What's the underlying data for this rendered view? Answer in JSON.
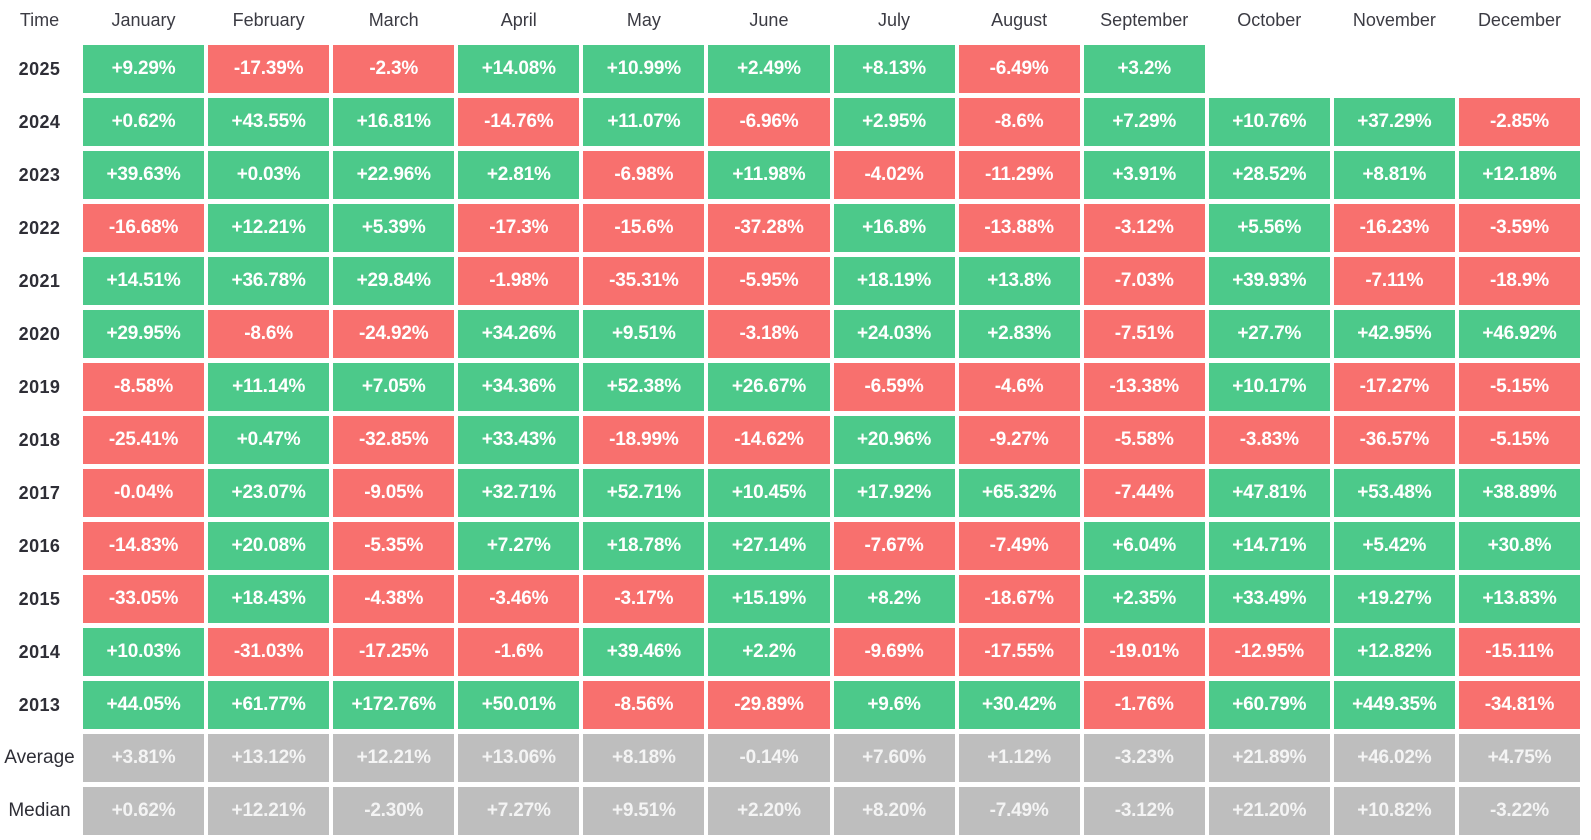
{
  "chart_data": {
    "type": "heatmap",
    "corner_label": "Time",
    "columns": [
      "January",
      "February",
      "March",
      "April",
      "May",
      "June",
      "July",
      "August",
      "September",
      "October",
      "November",
      "December"
    ],
    "rows": [
      {
        "label": "2025",
        "kind": "year",
        "values": [
          "+9.29%",
          "-17.39%",
          "-2.3%",
          "+14.08%",
          "+10.99%",
          "+2.49%",
          "+8.13%",
          "-6.49%",
          "+3.2%",
          null,
          null,
          null
        ]
      },
      {
        "label": "2024",
        "kind": "year",
        "values": [
          "+0.62%",
          "+43.55%",
          "+16.81%",
          "-14.76%",
          "+11.07%",
          "-6.96%",
          "+2.95%",
          "-8.6%",
          "+7.29%",
          "+10.76%",
          "+37.29%",
          "-2.85%"
        ]
      },
      {
        "label": "2023",
        "kind": "year",
        "values": [
          "+39.63%",
          "+0.03%",
          "+22.96%",
          "+2.81%",
          "-6.98%",
          "+11.98%",
          "-4.02%",
          "-11.29%",
          "+3.91%",
          "+28.52%",
          "+8.81%",
          "+12.18%"
        ]
      },
      {
        "label": "2022",
        "kind": "year",
        "values": [
          "-16.68%",
          "+12.21%",
          "+5.39%",
          "-17.3%",
          "-15.6%",
          "-37.28%",
          "+16.8%",
          "-13.88%",
          "-3.12%",
          "+5.56%",
          "-16.23%",
          "-3.59%"
        ]
      },
      {
        "label": "2021",
        "kind": "year",
        "values": [
          "+14.51%",
          "+36.78%",
          "+29.84%",
          "-1.98%",
          "-35.31%",
          "-5.95%",
          "+18.19%",
          "+13.8%",
          "-7.03%",
          "+39.93%",
          "-7.11%",
          "-18.9%"
        ]
      },
      {
        "label": "2020",
        "kind": "year",
        "values": [
          "+29.95%",
          "-8.6%",
          "-24.92%",
          "+34.26%",
          "+9.51%",
          "-3.18%",
          "+24.03%",
          "+2.83%",
          "-7.51%",
          "+27.7%",
          "+42.95%",
          "+46.92%"
        ]
      },
      {
        "label": "2019",
        "kind": "year",
        "values": [
          "-8.58%",
          "+11.14%",
          "+7.05%",
          "+34.36%",
          "+52.38%",
          "+26.67%",
          "-6.59%",
          "-4.6%",
          "-13.38%",
          "+10.17%",
          "-17.27%",
          "-5.15%"
        ]
      },
      {
        "label": "2018",
        "kind": "year",
        "values": [
          "-25.41%",
          "+0.47%",
          "-32.85%",
          "+33.43%",
          "-18.99%",
          "-14.62%",
          "+20.96%",
          "-9.27%",
          "-5.58%",
          "-3.83%",
          "-36.57%",
          "-5.15%"
        ]
      },
      {
        "label": "2017",
        "kind": "year",
        "values": [
          "-0.04%",
          "+23.07%",
          "-9.05%",
          "+32.71%",
          "+52.71%",
          "+10.45%",
          "+17.92%",
          "+65.32%",
          "-7.44%",
          "+47.81%",
          "+53.48%",
          "+38.89%"
        ]
      },
      {
        "label": "2016",
        "kind": "year",
        "values": [
          "-14.83%",
          "+20.08%",
          "-5.35%",
          "+7.27%",
          "+18.78%",
          "+27.14%",
          "-7.67%",
          "-7.49%",
          "+6.04%",
          "+14.71%",
          "+5.42%",
          "+30.8%"
        ]
      },
      {
        "label": "2015",
        "kind": "year",
        "values": [
          "-33.05%",
          "+18.43%",
          "-4.38%",
          "-3.46%",
          "-3.17%",
          "+15.19%",
          "+8.2%",
          "-18.67%",
          "+2.35%",
          "+33.49%",
          "+19.27%",
          "+13.83%"
        ]
      },
      {
        "label": "2014",
        "kind": "year",
        "values": [
          "+10.03%",
          "-31.03%",
          "-17.25%",
          "-1.6%",
          "+39.46%",
          "+2.2%",
          "-9.69%",
          "-17.55%",
          "-19.01%",
          "-12.95%",
          "+12.82%",
          "-15.11%"
        ]
      },
      {
        "label": "2013",
        "kind": "year",
        "values": [
          "+44.05%",
          "+61.77%",
          "+172.76%",
          "+50.01%",
          "-8.56%",
          "-29.89%",
          "+9.6%",
          "+30.42%",
          "-1.76%",
          "+60.79%",
          "+449.35%",
          "-34.81%"
        ]
      },
      {
        "label": "Average",
        "kind": "summary",
        "values": [
          "+3.81%",
          "+13.12%",
          "+12.21%",
          "+13.06%",
          "+8.18%",
          "-0.14%",
          "+7.60%",
          "+1.12%",
          "-3.23%",
          "+21.89%",
          "+46.02%",
          "+4.75%"
        ]
      },
      {
        "label": "Median",
        "kind": "summary",
        "values": [
          "+0.62%",
          "+12.21%",
          "-2.30%",
          "+7.27%",
          "+9.51%",
          "+2.20%",
          "+8.20%",
          "-7.49%",
          "-3.12%",
          "+21.20%",
          "+10.82%",
          "-3.22%"
        ]
      }
    ],
    "colors": {
      "positive": "#4CC98A",
      "negative": "#F8706E",
      "summary": "#BEBEBE",
      "header_text": "#3B3B43",
      "label_text": "#2E2E36",
      "value_text": "#FFFFFF"
    },
    "legend": "none"
  }
}
